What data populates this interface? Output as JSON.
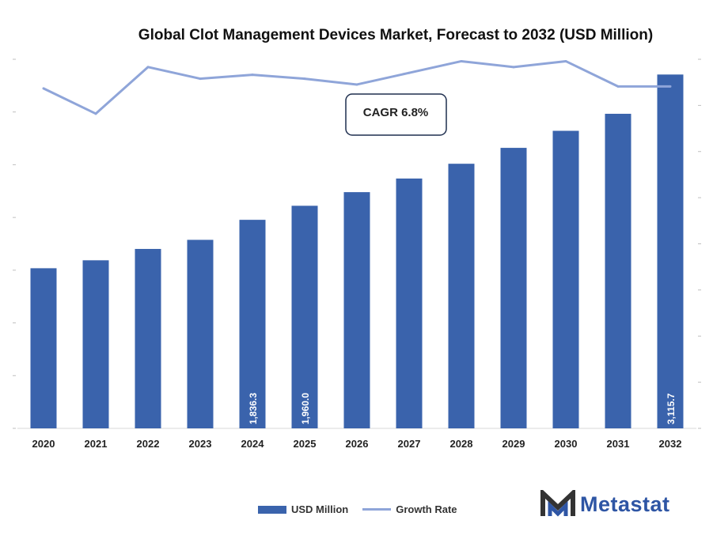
{
  "chart_data": {
    "type": "bar",
    "title": "Global Clot Management Devices Market, Forecast to 2032 (USD Million)",
    "categories": [
      "2020",
      "2021",
      "2022",
      "2023",
      "2024",
      "2025",
      "2026",
      "2027",
      "2028",
      "2029",
      "2030",
      "2031",
      "2032"
    ],
    "series": [
      {
        "name": "USD Million",
        "type": "bar",
        "values": [
          1410,
          1480,
          1580,
          1660,
          1836.3,
          1960.0,
          2080,
          2200,
          2330,
          2470,
          2620,
          2770,
          3115.7
        ],
        "data_labels": [
          "",
          "",
          "",
          "",
          "1,836.3",
          "1,960.0",
          "",
          "",
          "",
          "",
          "",
          "",
          "3,115.7"
        ]
      },
      {
        "name": "Growth Rate",
        "type": "line",
        "values": [
          5.9,
          4.6,
          7.0,
          6.4,
          6.6,
          6.4,
          6.1,
          6.7,
          7.3,
          7.0,
          7.3,
          6.0,
          6.0
        ]
      }
    ],
    "colors": {
      "bar": "#3a63ac",
      "line": "#8fa5d9"
    },
    "ylim": [
      0,
      3250
    ],
    "ylim_right": [
      -11.6,
      7.4
    ],
    "xlabel": "",
    "ylabel": "",
    "grid": false,
    "legend_position": "bottom",
    "annotation": {
      "text": "CAGR 6.8%"
    }
  },
  "legend": {
    "bar_label": "USD Million",
    "line_label": "Growth Rate"
  },
  "logo": {
    "text": "Metastat",
    "icon": "metastat-m-icon"
  }
}
